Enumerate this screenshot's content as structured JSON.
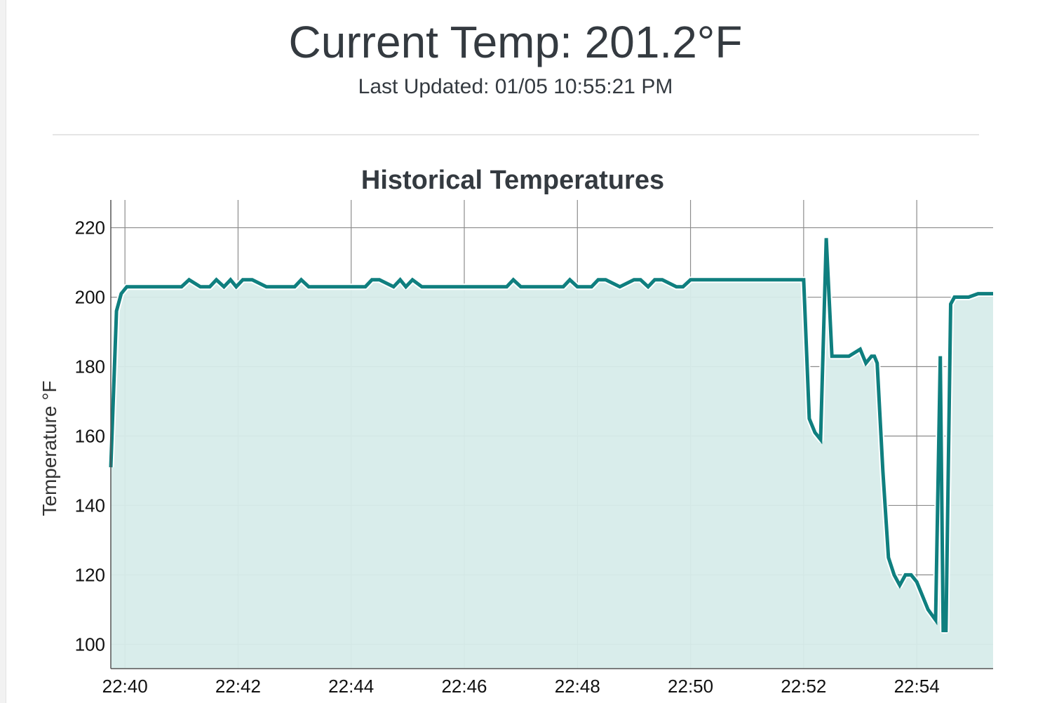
{
  "header": {
    "title": "Current Temp: 201.2°F",
    "subtitle": "Last Updated: 01/05 10:55:21 PM"
  },
  "colors": {
    "line": "#0f7f7f",
    "fill": "#d7ecea",
    "grid": "#8c8c8c",
    "text": "#343a40"
  },
  "chart_data": {
    "type": "area",
    "title": "Historical Temperatures",
    "ylabel": "Temperature °F",
    "xlabel": "",
    "x_ticks": [
      "22:40",
      "22:42",
      "22:44",
      "22:46",
      "22:48",
      "22:50",
      "22:52",
      "22:54"
    ],
    "y_ticks": [
      100,
      120,
      140,
      160,
      180,
      200,
      220
    ],
    "xlim": [
      "22:39:45",
      "22:55:21"
    ],
    "ylim": [
      93,
      228
    ],
    "grid": true,
    "series": [
      {
        "x": [
          "22:39:45",
          "22:39:51",
          "22:39:56",
          "22:40:02",
          "22:40:09",
          "22:40:30",
          "22:41:00",
          "22:41:08",
          "22:41:20",
          "22:41:30",
          "22:41:37",
          "22:41:45",
          "22:41:52",
          "22:41:58",
          "22:42:05",
          "22:42:15",
          "22:42:30",
          "22:42:45",
          "22:43:00",
          "22:43:07",
          "22:43:15",
          "22:43:30",
          "22:43:45",
          "22:44:00",
          "22:44:15",
          "22:44:22",
          "22:44:30",
          "22:44:45",
          "22:44:52",
          "22:44:58",
          "22:45:05",
          "22:45:15",
          "22:45:30",
          "22:45:45",
          "22:46:00",
          "22:46:15",
          "22:46:30",
          "22:46:45",
          "22:46:52",
          "22:47:00",
          "22:47:15",
          "22:47:30",
          "22:47:45",
          "22:47:52",
          "22:48:00",
          "22:48:15",
          "22:48:22",
          "22:48:30",
          "22:48:45",
          "22:49:00",
          "22:49:07",
          "22:49:15",
          "22:49:22",
          "22:49:30",
          "22:49:45",
          "22:49:52",
          "22:50:00",
          "22:50:30",
          "22:51:00",
          "22:51:30",
          "22:52:00",
          "22:52:06",
          "22:52:12",
          "22:52:18",
          "22:52:24",
          "22:52:30",
          "22:52:36",
          "22:52:42",
          "22:52:48",
          "22:53:00",
          "22:53:06",
          "22:53:12",
          "22:53:15",
          "22:53:18",
          "22:53:24",
          "22:53:30",
          "22:53:36",
          "22:53:42",
          "22:53:48",
          "22:53:54",
          "22:54:00",
          "22:54:06",
          "22:54:12",
          "22:54:20",
          "22:54:25",
          "22:54:28",
          "22:54:31",
          "22:54:36",
          "22:54:40",
          "22:54:45",
          "22:54:55",
          "22:55:05",
          "22:55:14",
          "22:55:21"
        ],
        "values": [
          151,
          196,
          201,
          203,
          203,
          203,
          203,
          205,
          203,
          203,
          205,
          203,
          205,
          203,
          205,
          205,
          203,
          203,
          203,
          205,
          203,
          203,
          203,
          203,
          203,
          205,
          205,
          203,
          205,
          203,
          205,
          203,
          203,
          203,
          203,
          203,
          203,
          203,
          205,
          203,
          203,
          203,
          203,
          205,
          203,
          203,
          205,
          205,
          203,
          205,
          205,
          203,
          205,
          205,
          203,
          203,
          205,
          205,
          205,
          205,
          205,
          165,
          161,
          159,
          217,
          183,
          183,
          183,
          183,
          185,
          181,
          183,
          183,
          181,
          150,
          125,
          120,
          117,
          120,
          120,
          118,
          114,
          110,
          107,
          183,
          104,
          104,
          198,
          200,
          200,
          200,
          201,
          201,
          201
        ]
      }
    ]
  }
}
